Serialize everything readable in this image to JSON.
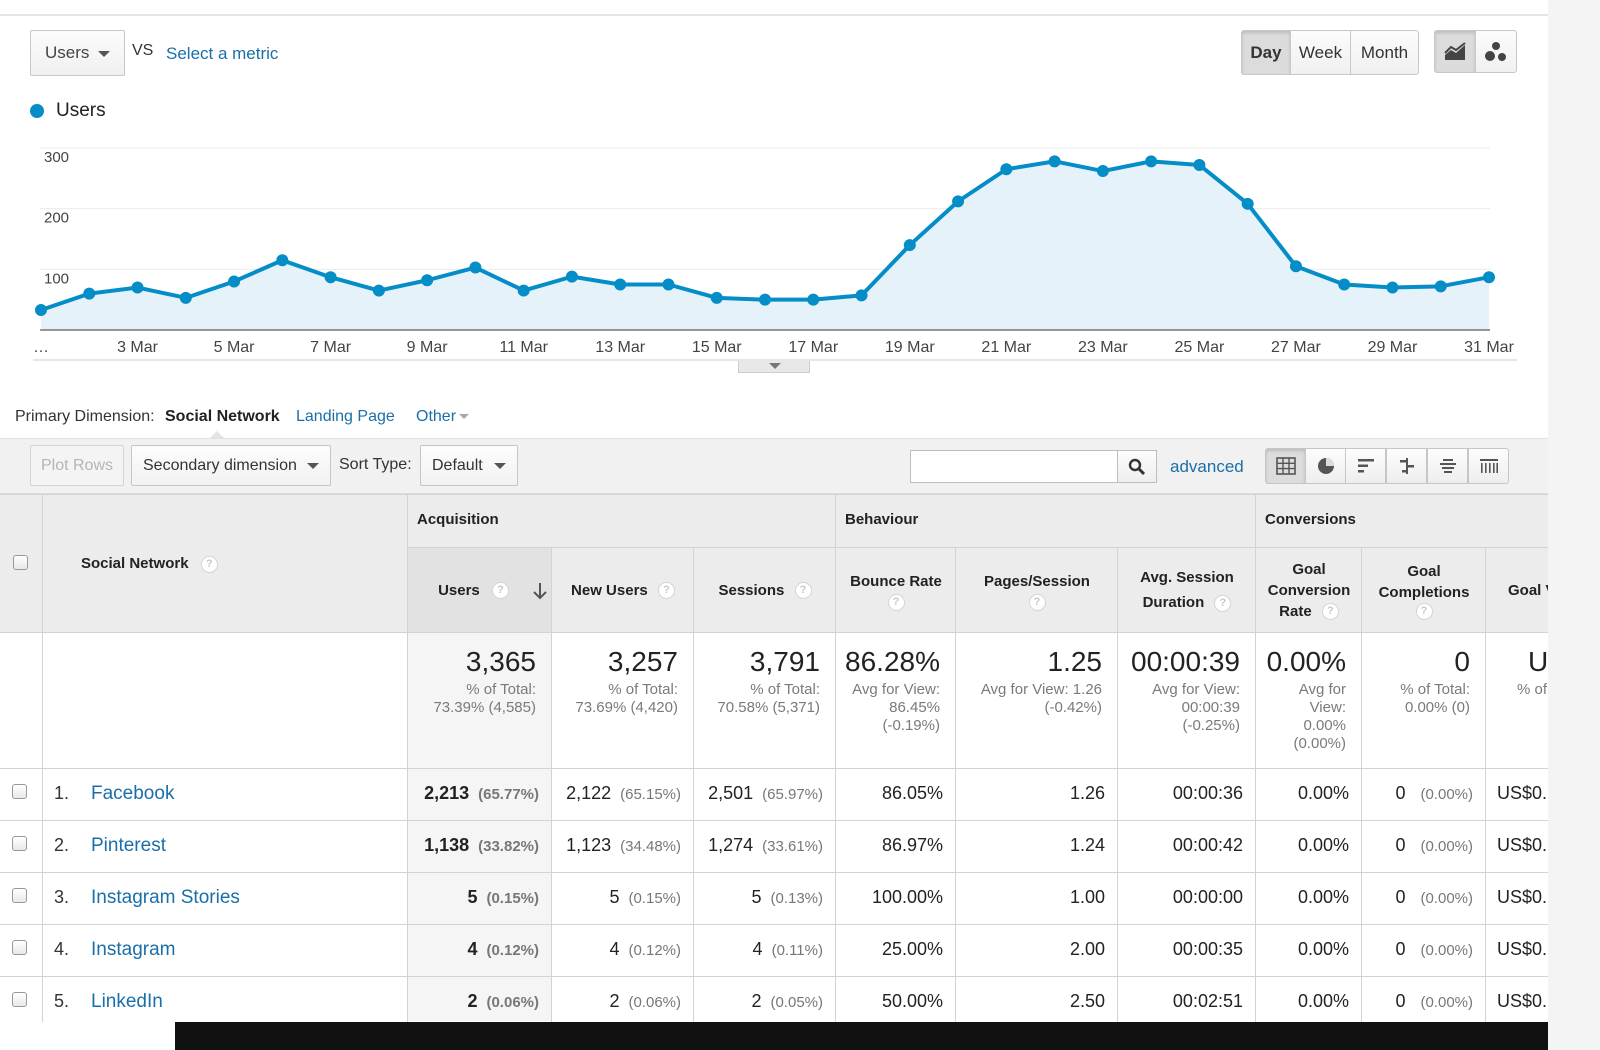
{
  "controls": {
    "metric": "Users",
    "vs": "VS",
    "select_metric": "Select a metric",
    "granularity": [
      "Day",
      "Week",
      "Month"
    ],
    "active_granularity": "Day"
  },
  "chart_data": {
    "type": "area",
    "series": [
      {
        "name": "Users",
        "color": "#058dc7",
        "values": [
          33,
          60,
          70,
          53,
          80,
          115,
          87,
          65,
          82,
          103,
          65,
          88,
          75,
          75,
          53,
          50,
          50,
          57,
          140,
          212,
          265,
          278,
          262,
          278,
          272,
          208,
          105,
          75,
          70,
          72,
          87
        ]
      }
    ],
    "x": [
      "1 Mar",
      "2 Mar",
      "3 Mar",
      "4 Mar",
      "5 Mar",
      "6 Mar",
      "7 Mar",
      "8 Mar",
      "9 Mar",
      "10 Mar",
      "11 Mar",
      "12 Mar",
      "13 Mar",
      "14 Mar",
      "15 Mar",
      "16 Mar",
      "17 Mar",
      "18 Mar",
      "19 Mar",
      "20 Mar",
      "21 Mar",
      "22 Mar",
      "23 Mar",
      "24 Mar",
      "25 Mar",
      "26 Mar",
      "27 Mar",
      "28 Mar",
      "29 Mar",
      "30 Mar",
      "31 Mar"
    ],
    "x_tick_labels": [
      "…",
      "3 Mar",
      "5 Mar",
      "7 Mar",
      "9 Mar",
      "11 Mar",
      "13 Mar",
      "15 Mar",
      "17 Mar",
      "19 Mar",
      "21 Mar",
      "23 Mar",
      "25 Mar",
      "27 Mar",
      "29 Mar",
      "31 Mar"
    ],
    "y_ticks": [
      100,
      200,
      300
    ],
    "ylim": [
      0,
      300
    ],
    "grid": true,
    "legend": "top-left"
  },
  "primary_dimension": {
    "label": "Primary Dimension:",
    "active": "Social Network",
    "links": [
      "Landing Page",
      "Other"
    ]
  },
  "toolbar": {
    "plot_rows": "Plot Rows",
    "secondary_dimension": "Secondary dimension",
    "sort_type_label": "Sort Type:",
    "sort_type_value": "Default",
    "search_value": "",
    "advanced": "advanced"
  },
  "table": {
    "dimension_header": "Social Network",
    "groups": [
      "Acquisition",
      "Behaviour",
      "Conversions"
    ],
    "headers": {
      "users": "Users",
      "new_users": "New Users",
      "sessions": "Sessions",
      "bounce_rate": "Bounce Rate",
      "pages_session": "Pages/Session",
      "avg_session_1": "Avg. Session",
      "avg_session_2": "Duration",
      "gcr_1": "Goal",
      "gcr_2": "Conversion",
      "gcr_3": "Rate",
      "gc_1": "Goal",
      "gc_2": "Completions",
      "gv": "Goal V"
    },
    "totals": {
      "users": {
        "value": "3,365",
        "sub1": "% of Total:",
        "sub2": "73.39% (4,585)"
      },
      "new_users": {
        "value": "3,257",
        "sub1": "% of Total:",
        "sub2": "73.69% (4,420)"
      },
      "sessions": {
        "value": "3,791",
        "sub1": "% of Total:",
        "sub2": "70.58% (5,371)"
      },
      "bounce_rate": {
        "value": "86.28%",
        "sub1": "Avg for View:",
        "sub2": "86.45%",
        "sub3": "(-0.19%)"
      },
      "pages_session": {
        "value": "1.25",
        "sub1": "Avg for View: 1.26",
        "sub2": "(-0.42%)"
      },
      "avg_session": {
        "value": "00:00:39",
        "sub1": "Avg for View:",
        "sub2": "00:00:39",
        "sub3": "(-0.25%)"
      },
      "gcr": {
        "value": "0.00%",
        "sub1": "Avg for",
        "sub2": "View:",
        "sub3": "0.00%",
        "sub4": "(0.00%)"
      },
      "gc": {
        "value": "0",
        "sub1": "% of Total:",
        "sub2": "0.00% (0)"
      },
      "gv": {
        "value": "U",
        "sub1": "% of"
      }
    },
    "rows": [
      {
        "num": "1.",
        "name": "Facebook",
        "users": "2,213",
        "users_pct": "(65.77%)",
        "new_users": "2,122",
        "new_users_pct": "(65.15%)",
        "sessions": "2,501",
        "sessions_pct": "(65.97%)",
        "bounce": "86.05%",
        "pages": "1.26",
        "duration": "00:00:36",
        "gcr": "0.00%",
        "gc": "0",
        "gc_pct": "(0.00%)",
        "gv": "US$0."
      },
      {
        "num": "2.",
        "name": "Pinterest",
        "users": "1,138",
        "users_pct": "(33.82%)",
        "new_users": "1,123",
        "new_users_pct": "(34.48%)",
        "sessions": "1,274",
        "sessions_pct": "(33.61%)",
        "bounce": "86.97%",
        "pages": "1.24",
        "duration": "00:00:42",
        "gcr": "0.00%",
        "gc": "0",
        "gc_pct": "(0.00%)",
        "gv": "US$0."
      },
      {
        "num": "3.",
        "name": "Instagram Stories",
        "users": "5",
        "users_pct": "(0.15%)",
        "new_users": "5",
        "new_users_pct": "(0.15%)",
        "sessions": "5",
        "sessions_pct": "(0.13%)",
        "bounce": "100.00%",
        "pages": "1.00",
        "duration": "00:00:00",
        "gcr": "0.00%",
        "gc": "0",
        "gc_pct": "(0.00%)",
        "gv": "US$0."
      },
      {
        "num": "4.",
        "name": "Instagram",
        "users": "4",
        "users_pct": "(0.12%)",
        "new_users": "4",
        "new_users_pct": "(0.12%)",
        "sessions": "4",
        "sessions_pct": "(0.11%)",
        "bounce": "25.00%",
        "pages": "2.00",
        "duration": "00:00:35",
        "gcr": "0.00%",
        "gc": "0",
        "gc_pct": "(0.00%)",
        "gv": "US$0."
      },
      {
        "num": "5.",
        "name": "LinkedIn",
        "users": "2",
        "users_pct": "(0.06%)",
        "new_users": "2",
        "new_users_pct": "(0.06%)",
        "sessions": "2",
        "sessions_pct": "(0.05%)",
        "bounce": "50.00%",
        "pages": "2.50",
        "duration": "00:02:51",
        "gcr": "0.00%",
        "gc": "0",
        "gc_pct": "(0.00%)",
        "gv": "US$0."
      }
    ]
  }
}
